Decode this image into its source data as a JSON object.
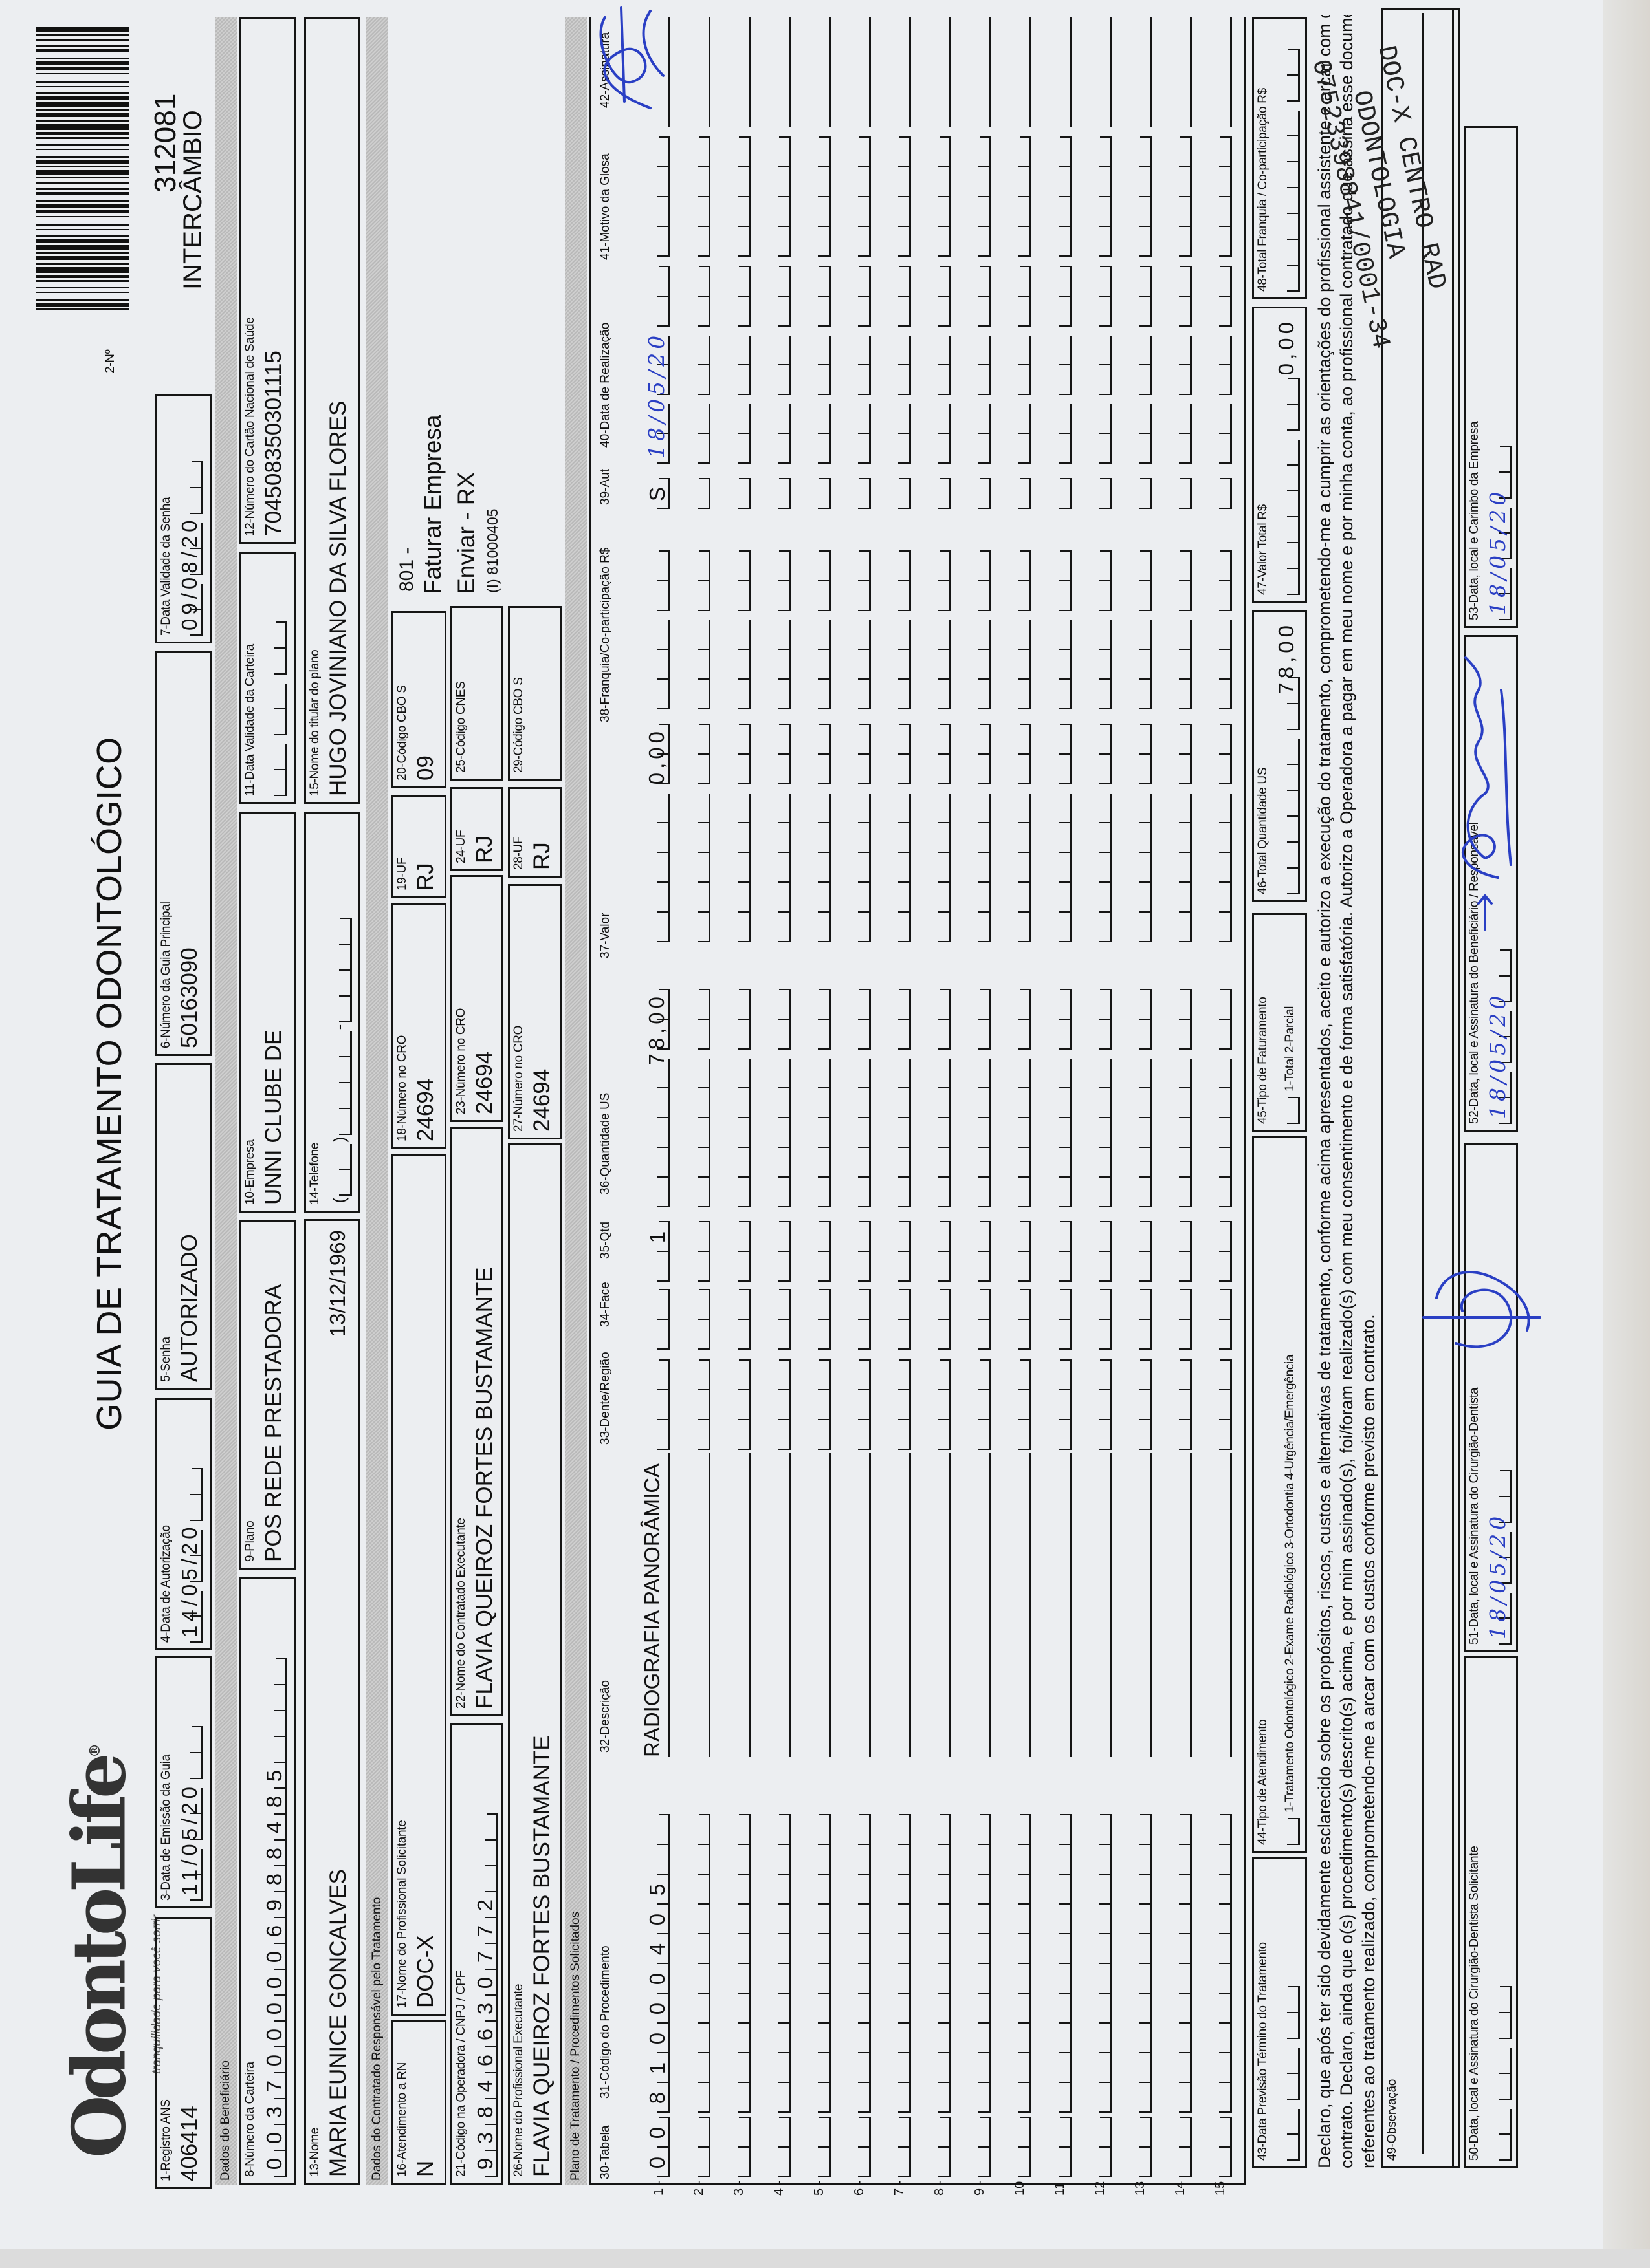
{
  "header": {
    "logo_text": "OdontoLife",
    "logo_tagline": "tranquilidade para você sorrir",
    "title": "GUIA DE TRATAMENTO ODONTOLÓGICO",
    "numero_label": "2-Nº",
    "numero_value": "312081",
    "intercambio": "INTERCÂMBIO"
  },
  "sections": {
    "beneficiario": "Dados do Beneficiário",
    "contratado": "Dados do Contratado Responsável pelo Tratamento",
    "plano": "Plano de Tratamento / Procedimentos Solicitados"
  },
  "fields": {
    "f1": {
      "label": "1-Registro ANS",
      "value": "406414"
    },
    "f3": {
      "label": "3-Data de Emissão da Guia",
      "value": "11/05/20"
    },
    "f4": {
      "label": "4-Data de Autorização",
      "value": "14/05/20"
    },
    "f5": {
      "label": "5-Senha",
      "value": "AUTORIZADO"
    },
    "f6": {
      "label": "6-Número da Guia Principal",
      "value": "50163090"
    },
    "f7": {
      "label": "7-Data Validade da Senha",
      "value": "09/08/20"
    },
    "f8": {
      "label": "8-Número da Carteira",
      "value": "0037000006988485"
    },
    "f9": {
      "label": "9-Plano",
      "value": "POS REDE PRESTADORA"
    },
    "f10": {
      "label": "10-Empresa",
      "value": "UNNI CLUBE DE"
    },
    "f11": {
      "label": "11-Data Validade da Carteira",
      "value": ""
    },
    "f12": {
      "label": "12-Número do Cartão Nacional de Saúde",
      "value": "704508350301115"
    },
    "f13": {
      "label": "13-Nome",
      "value": "MARIA EUNICE GONCALVES",
      "birth_date": "13/12/1969"
    },
    "f14": {
      "label": "14-Telefone",
      "value": ""
    },
    "f15": {
      "label": "15-Nome do titular do plano",
      "value": "HUGO JOVINIANO DA SILVA FLORES"
    },
    "f16": {
      "label": "16-Atendimento a RN",
      "value": "N"
    },
    "f17": {
      "label": "17-Nome do Profissional Solicitante",
      "value": "DOC-X"
    },
    "f18": {
      "label": "18-Número no CRO",
      "value": "24694"
    },
    "f19": {
      "label": "19-UF",
      "value": "RJ"
    },
    "f20": {
      "label": "20-Código CBO S",
      "value": "09"
    },
    "f21": {
      "label": "21-Código na Operadora / CNPJ / CPF",
      "value": "93846630772"
    },
    "f22": {
      "label": "22-Nome do Contratado Executante",
      "value": "FLAVIA QUEIROZ FORTES BUSTAMANTE"
    },
    "f23": {
      "label": "23-Número no CRO",
      "value": "24694"
    },
    "f24": {
      "label": "24-UF",
      "value": "RJ"
    },
    "f25": {
      "label": "25-Código CNES",
      "value": ""
    },
    "f26": {
      "label": "26-Nome do Profissional Executante",
      "value": "FLAVIA QUEIROZ FORTES BUSTAMANTE"
    },
    "f27": {
      "label": "27-Número no CRO",
      "value": "24694"
    },
    "f28": {
      "label": "28-UF",
      "value": "RJ"
    },
    "f29": {
      "label": "29-Código CBO S",
      "value": ""
    },
    "f43": {
      "label": "43-Data Previsão Término do Tratamento",
      "value": ""
    },
    "f44": {
      "label": "44-Tipo de Atendimento",
      "value": "",
      "options": "1-Tratamento Odontológico  2-Exame Radiológico  3-Ortodontia  4-Urgência/Emergência"
    },
    "f45": {
      "label": "45-Tipo de Faturamento",
      "value": "",
      "options": "1-Total  2-Parcial"
    },
    "f46": {
      "label": "46-Total Quantidade US",
      "value": "78,00"
    },
    "f47": {
      "label": "47-Valor Total R$",
      "value": "0,00"
    },
    "f48": {
      "label": "48-Total Franquia / Co-participação R$",
      "value": ""
    },
    "f49": {
      "label": "49-Observação",
      "value": ""
    },
    "f50": {
      "label": "50-Data, local e Assinatura do Cirurgião-Dentista Solicitante",
      "value": ""
    },
    "f51": {
      "label": "51-Data, local e Assinatura do Cirurgião-Dentista",
      "value": "18/05/20"
    },
    "f52": {
      "label": "52-Data, local e Assinatura do Beneficiário / Responsável",
      "value": "18/05/20"
    },
    "f53": {
      "label": "53-Data, local e Carimbo da Empresa",
      "value": "18/05/20"
    }
  },
  "side_info": {
    "line1": "801 -",
    "line2": "Faturar Empresa",
    "line3": "Enviar - RX",
    "line4": "(I) 81000405"
  },
  "table": {
    "headers": {
      "tabela": "30-Tabela",
      "codigo": "31-Código do Procedimento",
      "descricao": "32-Descrição",
      "dente": "33-Dente/Região",
      "face": "34-Face",
      "qtd": "35-Qtd",
      "qtd_us": "36-Quantidade US",
      "valor": "37-Valor",
      "franquia": "38-Franquia/Co-participação R$",
      "aut": "39-Aut",
      "data": "40-Data de Realização",
      "glosa": "41-Motivo da Glosa",
      "assinatura": "42-Assinatura"
    },
    "rows": [
      {
        "num": "1 -",
        "tabela": "00",
        "codigo": "81000405",
        "descricao": "RADIOGRAFIA PANORÂMICA",
        "dente": "",
        "face": "",
        "qtd": "1",
        "qtd_us": "78,00",
        "valor": "0,00",
        "franquia": "",
        "aut": "S",
        "data": "18/05/20",
        "glosa": ""
      },
      {
        "num": "2 -"
      },
      {
        "num": "3 -"
      },
      {
        "num": "4 -"
      },
      {
        "num": "5 -"
      },
      {
        "num": "6 -"
      },
      {
        "num": "7 -"
      },
      {
        "num": "8 -"
      },
      {
        "num": "9 -"
      },
      {
        "num": "10"
      },
      {
        "num": "11"
      },
      {
        "num": "12"
      },
      {
        "num": "13"
      },
      {
        "num": "14"
      },
      {
        "num": "15"
      }
    ]
  },
  "declaration": {
    "line1": "Declaro, que após ter sido devidamente esclarecido sobre os propósitos, riscos, custos e alternativas de tratamento, conforme acima apresentados, aceito e autorizo a execução do tratamento, comprometendo-me a cumprir as orientações do profissional assistente e arcar com os custos previstos em",
    "line2": "contrato. Declaro, ainda que o(s) procedimento(s) descrito(s) acima, e por mim assinado(s), foi/foram realizado(s) com meu consentimento e de forma satisfatória. Autorizo a Operadora a pagar em meu nome e por minha conta, ao profissional contratado que assina esse documento, os valores",
    "line3": "referentes ao tratamento realizado, comprometendo-me a arcar com os custos conforme previsto em contrato."
  },
  "stamp": {
    "line1": "DOC-X CENTRO RAD",
    "line2": "ODONTOLOGIA",
    "line3": "07523398841/0001-34"
  },
  "colors": {
    "ink": "#111111",
    "pen": "#2a3fc4",
    "band": "#c4c4c4",
    "paper": "#eceef1"
  }
}
